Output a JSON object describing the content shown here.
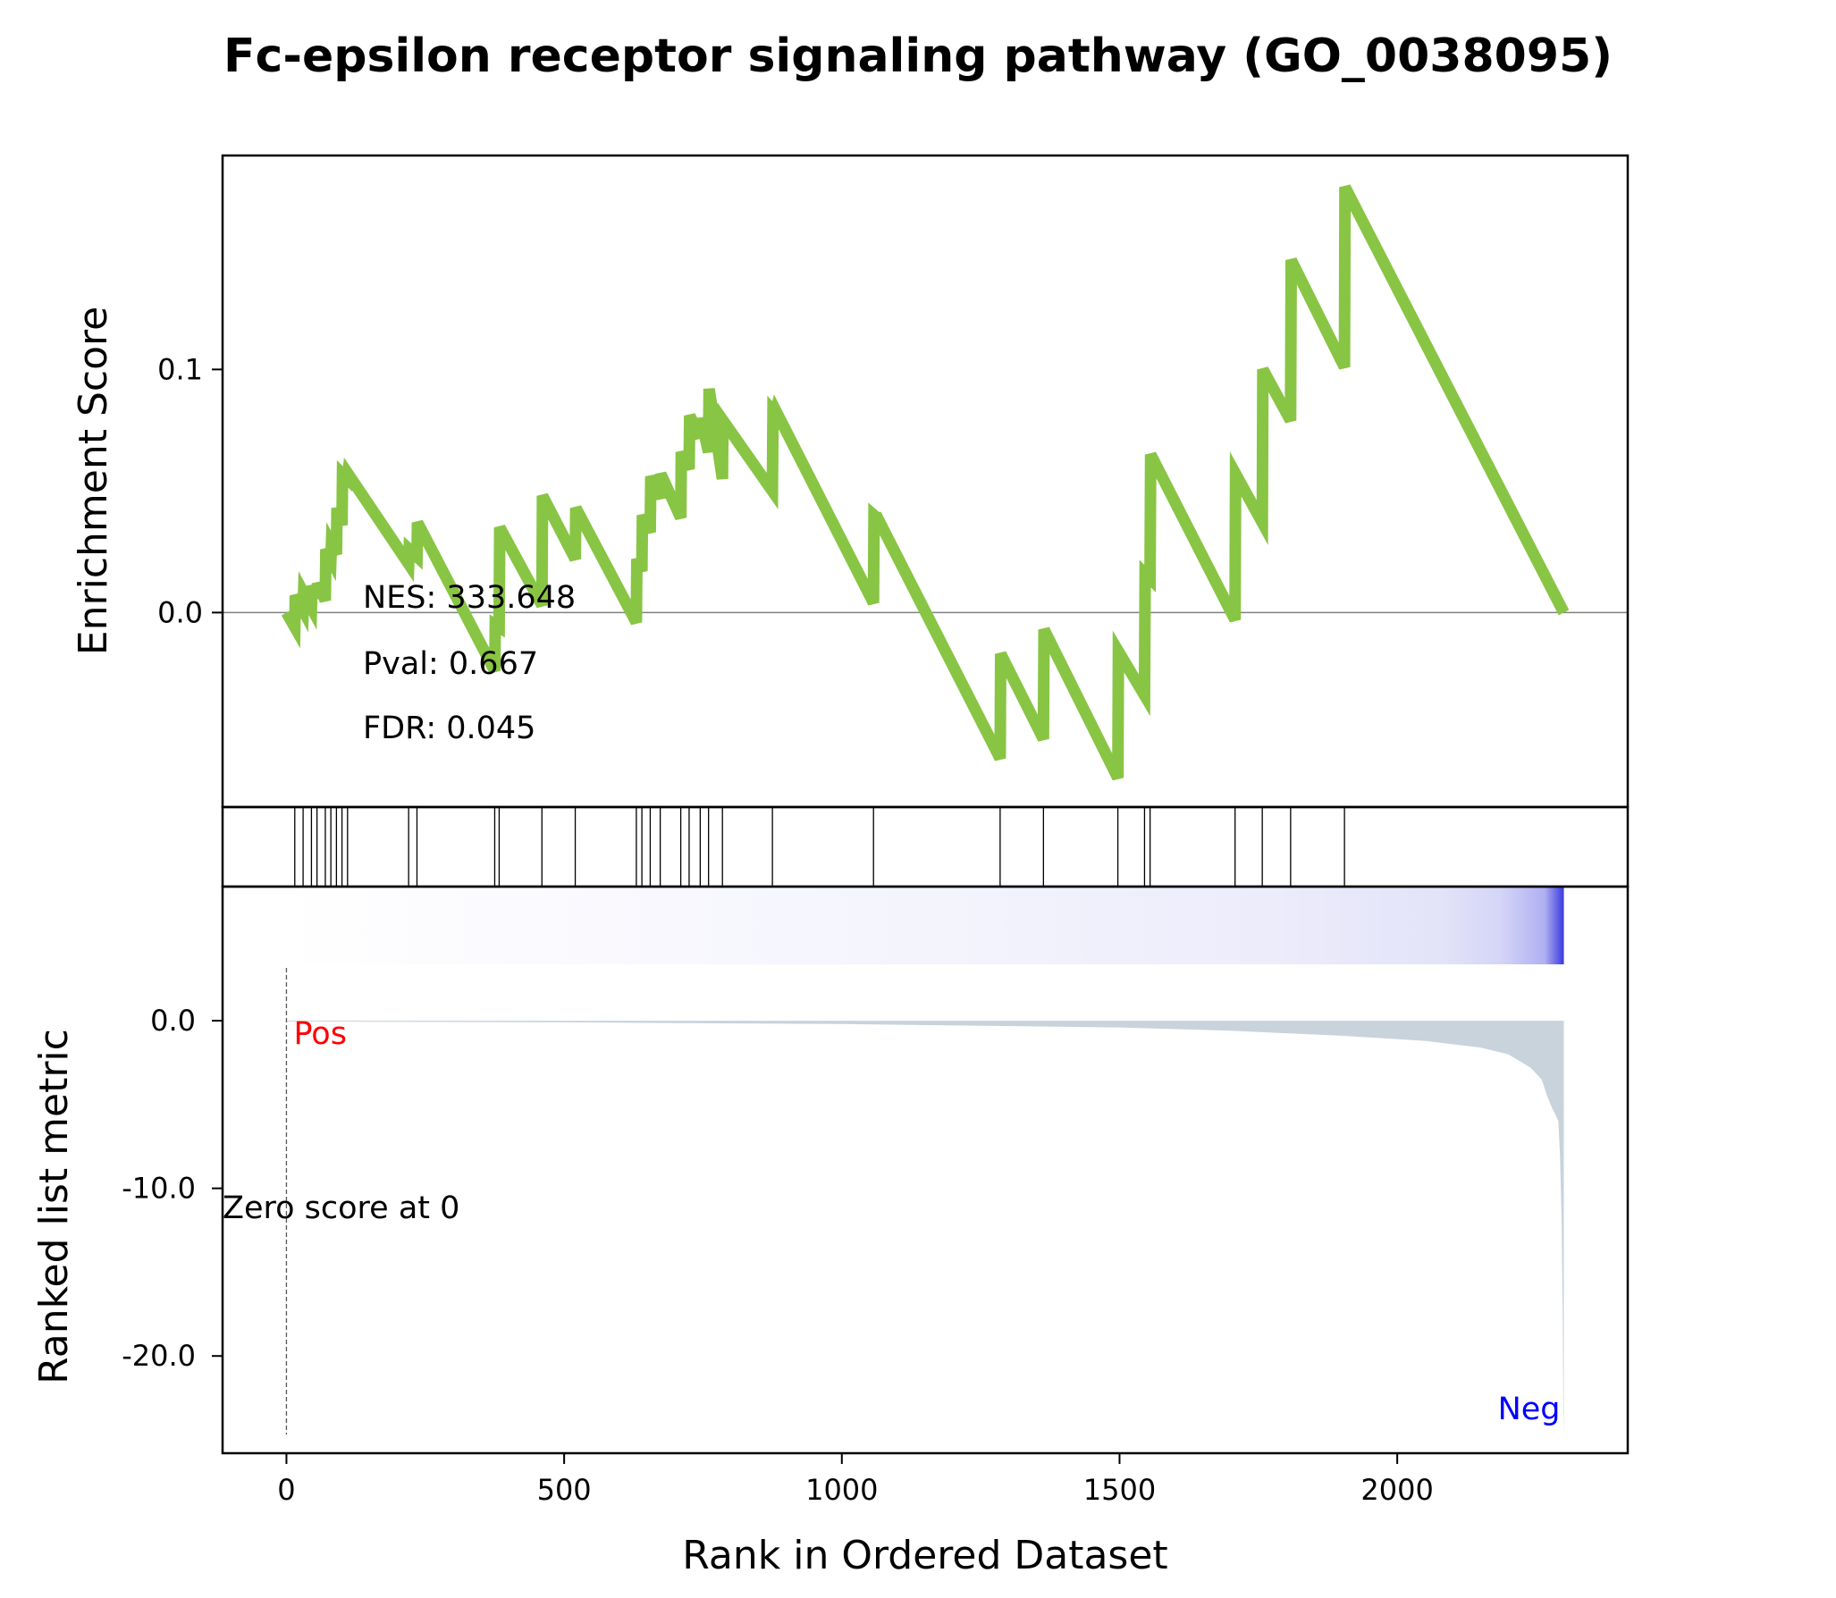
{
  "chart_data": {
    "type": "line",
    "title": "Fc-epsilon receptor signaling pathway (GO_0038095)",
    "xlabel": "Rank in Ordered Dataset",
    "xlim": [
      -115,
      2415
    ],
    "xticks": [
      0,
      500,
      1000,
      1500,
      2000
    ],
    "colors": {
      "es_line": "#88c544",
      "metric_fill": "#c9d3dc",
      "neg_label": "#0000ff",
      "pos_label": "#ff0000"
    },
    "es_panel": {
      "ylabel": "Enrichment Score",
      "ylim": [
        -0.08,
        0.188
      ],
      "yticks": [
        {
          "value": 0.0,
          "label": "0.0"
        },
        {
          "value": 0.1,
          "label": "0.1"
        }
      ],
      "series": [
        {
          "x": [
            0,
            15,
            16,
            30,
            31,
            45,
            46,
            55,
            56,
            70,
            71,
            80,
            81,
            90,
            91,
            100,
            101,
            110,
            111,
            220,
            221,
            235,
            236,
            375,
            376,
            383,
            384,
            460,
            461,
            520,
            521,
            630,
            631,
            640,
            641,
            655,
            656,
            673,
            674,
            710,
            711,
            725,
            726,
            745,
            746,
            760,
            761,
            785,
            786,
            875,
            876,
            880,
            881,
            1057,
            1058,
            1063,
            1064,
            1285,
            1286,
            1363,
            1364,
            1497,
            1498,
            1545,
            1546,
            1555,
            1556,
            1708,
            1709,
            1757,
            1758,
            1808,
            1809,
            1905,
            1906,
            2300
          ],
          "y": [
            0.0,
            -0.006,
            0.007,
            0.001,
            0.008,
            0.002,
            0.011,
            0.006,
            0.012,
            0.005,
            0.026,
            0.022,
            0.028,
            0.024,
            0.043,
            0.036,
            0.057,
            0.055,
            0.057,
            0.02,
            0.026,
            0.023,
            0.037,
            -0.024,
            -0.005,
            -0.006,
            0.035,
            0.003,
            0.048,
            0.022,
            0.043,
            -0.004,
            0.022,
            0.017,
            0.04,
            0.033,
            0.056,
            0.047,
            0.057,
            0.039,
            0.066,
            0.059,
            0.081,
            0.072,
            0.08,
            0.066,
            0.092,
            0.055,
            0.079,
            0.05,
            0.083,
            0.082,
            0.083,
            0.004,
            0.04,
            0.039,
            0.039,
            -0.06,
            -0.017,
            -0.052,
            -0.007,
            -0.068,
            -0.016,
            -0.034,
            0.016,
            0.014,
            0.065,
            -0.003,
            0.057,
            0.037,
            0.1,
            0.079,
            0.145,
            0.101,
            0.175,
            0.0
          ]
        }
      ],
      "annotations": [
        "NES: 333.648",
        "Pval: 0.667",
        "FDR: 0.045"
      ]
    },
    "hits_panel": {
      "hits": [
        15,
        30,
        45,
        55,
        70,
        80,
        90,
        100,
        110,
        220,
        235,
        375,
        383,
        460,
        520,
        630,
        640,
        655,
        673,
        710,
        725,
        745,
        760,
        785,
        875,
        1057,
        1285,
        1363,
        1497,
        1545,
        1555,
        1708,
        1757,
        1808,
        1905
      ]
    },
    "metric_panel": {
      "ylabel": "Ranked list metric",
      "ylim": [
        -25.8,
        8
      ],
      "yticks": [
        {
          "value": 0.0,
          "label": "0.0"
        },
        {
          "value": -10.0,
          "label": "-10.0"
        },
        {
          "value": -20.0,
          "label": "-20.0"
        }
      ],
      "n_genes": 2300,
      "metric_x": [
        0,
        500,
        1000,
        1500,
        1700,
        1900,
        2050,
        2150,
        2200,
        2240,
        2260,
        2270,
        2280,
        2285,
        2290,
        2293,
        2296,
        2298,
        2299,
        2300
      ],
      "metric_y": [
        -0.05,
        -0.1,
        -0.2,
        -0.4,
        -0.6,
        -0.9,
        -1.2,
        -1.6,
        -2.0,
        -2.8,
        -3.5,
        -4.5,
        -5.3,
        -5.6,
        -6.0,
        -8.0,
        -12.0,
        -18.0,
        -23.0,
        -24.8
      ],
      "pos_label": "Pos",
      "neg_label": "Neg",
      "zero_label": "Zero score at 0",
      "zero_x": 0
    }
  }
}
